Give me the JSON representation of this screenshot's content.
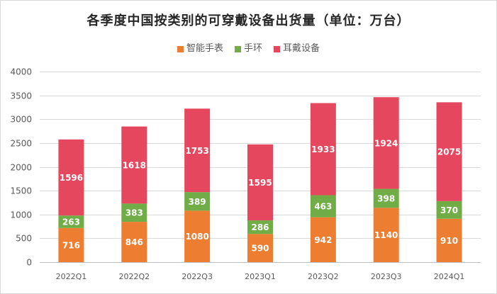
{
  "chart_data": {
    "type": "bar",
    "stacked": true,
    "title": "各季度中国按类别的可穿戴设备出货量（单位：万台）",
    "xlabel": "",
    "ylabel": "",
    "categories": [
      "2022Q1",
      "2022Q2",
      "2022Q3",
      "2023Q1",
      "2023Q2",
      "2023Q3",
      "2024Q1"
    ],
    "series": [
      {
        "name": "智能手表",
        "color": "#ED7D31",
        "values": [
          716,
          846,
          1080,
          590,
          942,
          1140,
          910
        ]
      },
      {
        "name": "手环",
        "color": "#70AD47",
        "values": [
          263,
          383,
          389,
          286,
          463,
          398,
          370
        ]
      },
      {
        "name": "耳戴设备",
        "color": "#E5485E",
        "values": [
          1596,
          1618,
          1753,
          1595,
          1933,
          1924,
          2075
        ]
      }
    ],
    "ylim": [
      0,
      4000
    ],
    "yticks": [
      0,
      500,
      1000,
      1500,
      2000,
      2500,
      3000,
      3500,
      4000
    ],
    "grid": true,
    "legend_position": "top",
    "data_labels": true
  }
}
